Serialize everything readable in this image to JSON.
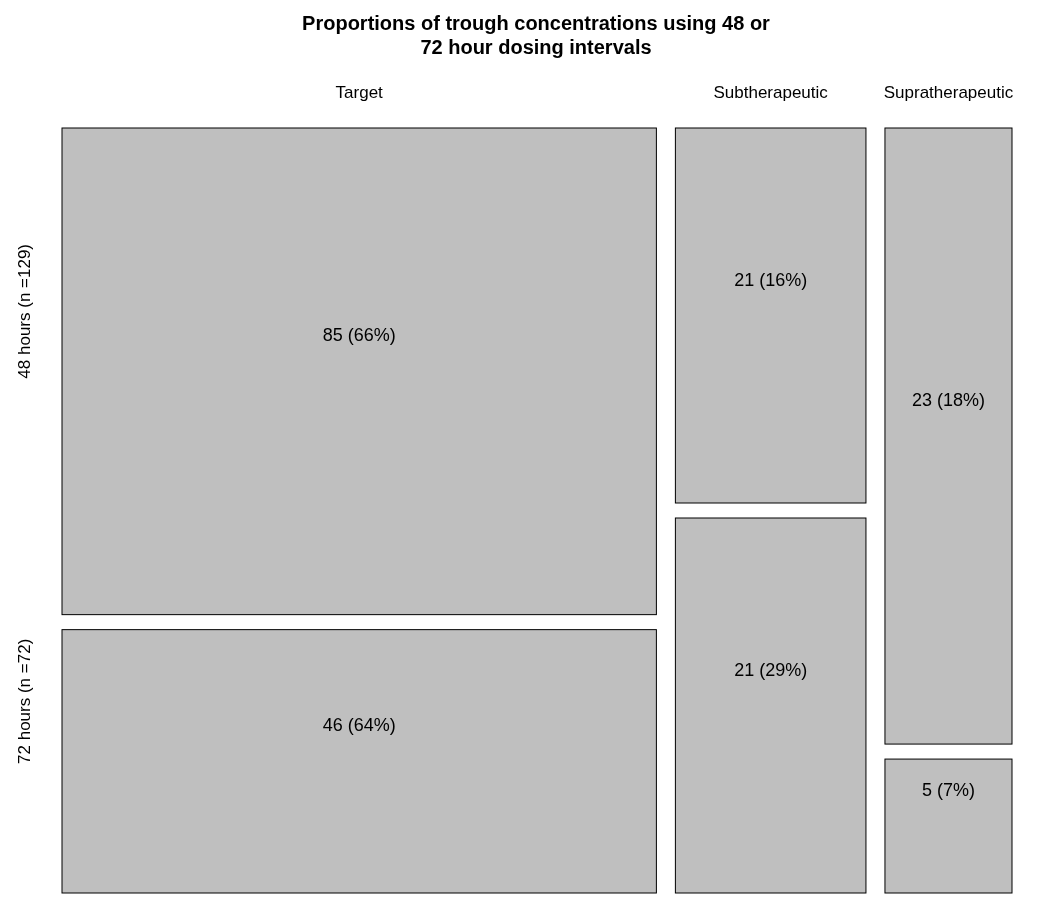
{
  "chart_data": {
    "type": "other",
    "title": "Proportions of trough concentrations using 48 or 72 hour dosing intervals",
    "categories": [
      "Target",
      "Subtherapeutic",
      "Supratherapeutic"
    ],
    "series": [
      {
        "name": "48 hours (n =129)",
        "color": "#bfbfbf",
        "values": [
          85,
          21,
          23
        ],
        "value_labels": [
          "85 (66%)",
          "21 (16%)",
          "23 (18%)"
        ]
      },
      {
        "name": "72 hours (n =72)",
        "color": "#bfbfbf",
        "values": [
          46,
          21,
          5
        ],
        "value_labels": [
          "46 (64%)",
          "21 (29%)",
          "5 (7%)"
        ]
      }
    ]
  }
}
